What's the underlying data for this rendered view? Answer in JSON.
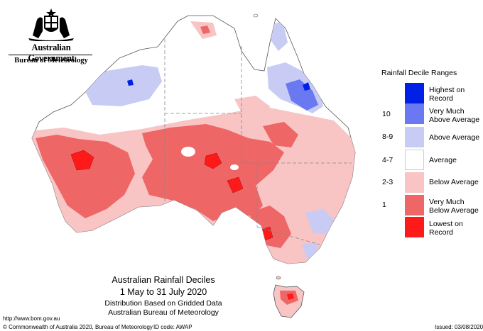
{
  "branding": {
    "government": "Australian Government",
    "bureau": "Bureau of Meteorology"
  },
  "legend": {
    "title": "Rainfall Decile Ranges",
    "items": [
      {
        "decile": "",
        "label_line1": "Highest on",
        "label_line2": "Record",
        "color": "#0020e6"
      },
      {
        "decile": "10",
        "label_line1": "Very Much",
        "label_line2": "Above Average",
        "color": "#6a78f2"
      },
      {
        "decile": "8-9",
        "label_line1": "Above Average",
        "label_line2": "",
        "color": "#c8ccf4"
      },
      {
        "decile": "4-7",
        "label_line1": "Average",
        "label_line2": "",
        "color": "#ffffff"
      },
      {
        "decile": "2-3",
        "label_line1": "Below Average",
        "label_line2": "",
        "color": "#f8c4c4"
      },
      {
        "decile": "1",
        "label_line1": "Very Much",
        "label_line2": "Below Average",
        "color": "#ee6666"
      },
      {
        "decile": "",
        "label_line1": "Lowest on",
        "label_line2": "Record",
        "color": "#ff1a1a"
      }
    ]
  },
  "caption": {
    "title": "Australian Rainfall Deciles",
    "period": "1 May to 31 July 2020",
    "subtitle1": "Distribution Based on Gridded Data",
    "subtitle2": "Australian Bureau of Meteorology"
  },
  "footer": {
    "url": "http://www.bom.gov.au",
    "copyright": "© Commonwealth of Australia 2020, Bureau of Meteorology",
    "id_code": "ID code: AWAP",
    "issued": "Issued: 03/08/2020"
  }
}
